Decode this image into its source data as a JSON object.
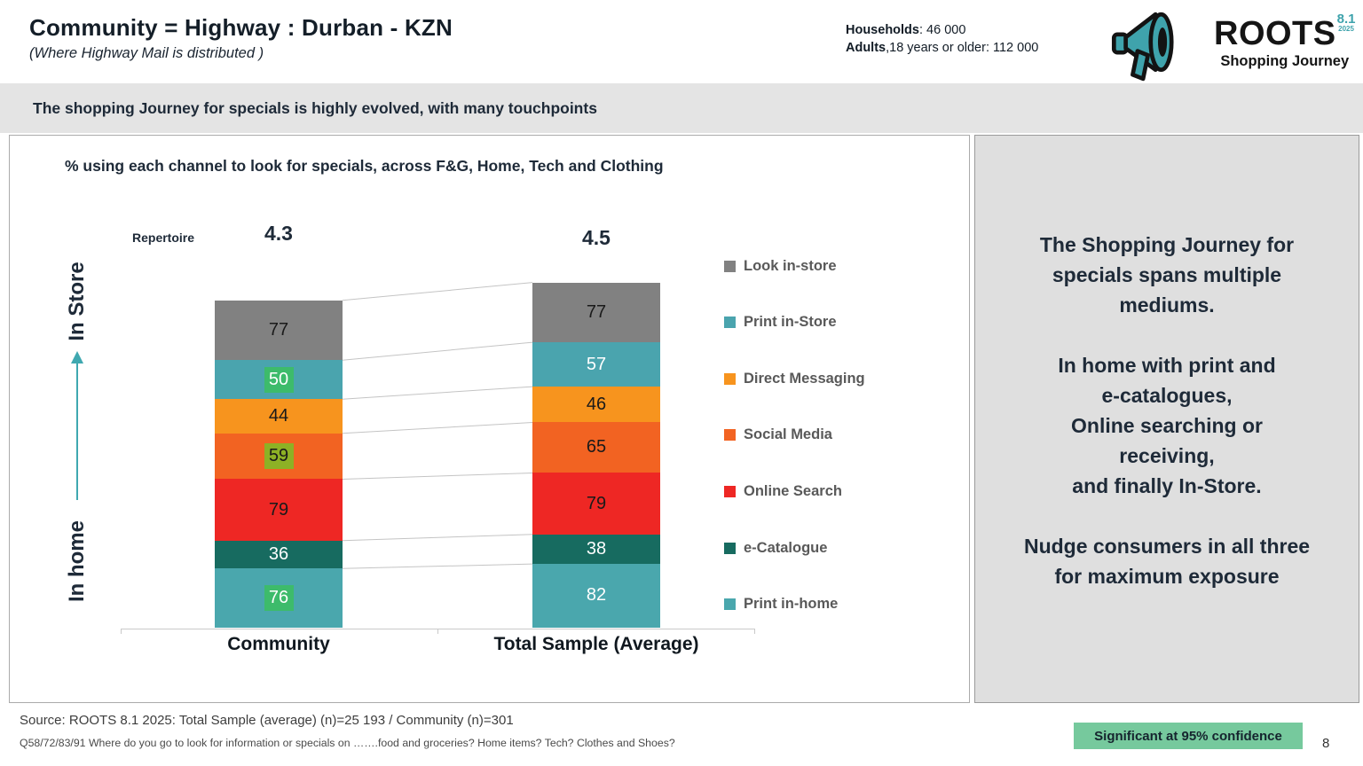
{
  "slide": {
    "title": "Community = Highway : Durban - KZN",
    "subtitle": "(Where Highway Mail is distributed )",
    "banner": "The shopping Journey for specials is highly evolved, with many touchpoints",
    "page_number": "8"
  },
  "stats": {
    "households_label": "Households",
    "households_rest": ": 46 000",
    "adults_label": "Adults",
    "adults_rest": ",18 years or older: 112 000"
  },
  "logo": {
    "brand": "ROOTS",
    "version": "8.1",
    "year": "2025",
    "product": "Shopping Journey",
    "teal": "#3FA3AC"
  },
  "insight_panel": {
    "p1": "The Shopping Journey for\nspecials spans multiple\nmediums.",
    "p2": "In home with print and\ne-catalogues,\nOnline searching or\nreceiving,\nand finally In-Store.",
    "p3": "Nudge consumers in all three\nfor maximum exposure"
  },
  "footer": {
    "source": "Source: ROOTS 8.1 2025:  Total Sample (average)  (n)=25 193 / Community (n)=301",
    "question": "Q58/72/83/91 Where do you go to look for information or specials on …….food and groceries? Home items? Tech? Clothes and Shoes?",
    "significance": "Significant at 95% confidence",
    "significance_bg": "#76C99D"
  },
  "chart_data": {
    "type": "bar",
    "stacked": true,
    "title": "% using each channel to look for specials, across F&G, Home, Tech and Clothing",
    "categories": [
      "Community",
      "Total Sample (Average)"
    ],
    "repertoire_label": "Repertoire",
    "repertoire": [
      "4.3",
      "4.5"
    ],
    "axis_left_top_label": "In Store",
    "axis_left_bottom_label": "In home",
    "value_unit": "%",
    "legend_position": "right",
    "series_top_to_bottom": [
      {
        "name": "Look in-store",
        "color": "#818181",
        "values": [
          77,
          77
        ],
        "label_colors": [
          "#1a1a1a",
          "#1a1a1a"
        ],
        "highlight_bg": [
          null,
          null
        ]
      },
      {
        "name": "Print in-Store",
        "color": "#4AA4AE",
        "values": [
          50,
          57
        ],
        "label_colors": [
          "#ffffff",
          "#ffffff"
        ],
        "highlight_bg": [
          "#3DBB6B",
          null
        ]
      },
      {
        "name": "Direct Messaging",
        "color": "#F7941E",
        "values": [
          44,
          46
        ],
        "label_colors": [
          "#1a1a1a",
          "#1a1a1a"
        ],
        "highlight_bg": [
          null,
          null
        ]
      },
      {
        "name": "Social Media",
        "color": "#F26322",
        "values": [
          59,
          65
        ],
        "label_colors": [
          "#1a1a1a",
          "#1a1a1a"
        ],
        "highlight_bg": [
          "#8DB125",
          null
        ]
      },
      {
        "name": "Online Search",
        "color": "#EE2724",
        "values": [
          79,
          79
        ],
        "label_colors": [
          "#1a1a1a",
          "#1a1a1a"
        ],
        "highlight_bg": [
          null,
          null
        ]
      },
      {
        "name": "e-Catalogue",
        "color": "#176B60",
        "values": [
          36,
          38
        ],
        "label_colors": [
          "#ffffff",
          "#ffffff"
        ],
        "highlight_bg": [
          null,
          null
        ]
      },
      {
        "name": "Print in-home",
        "color": "#4AA7AD",
        "values": [
          76,
          82
        ],
        "label_colors": [
          "#ffffff",
          "#ffffff"
        ],
        "highlight_bg": [
          "#3DBB6B",
          null
        ]
      }
    ]
  }
}
